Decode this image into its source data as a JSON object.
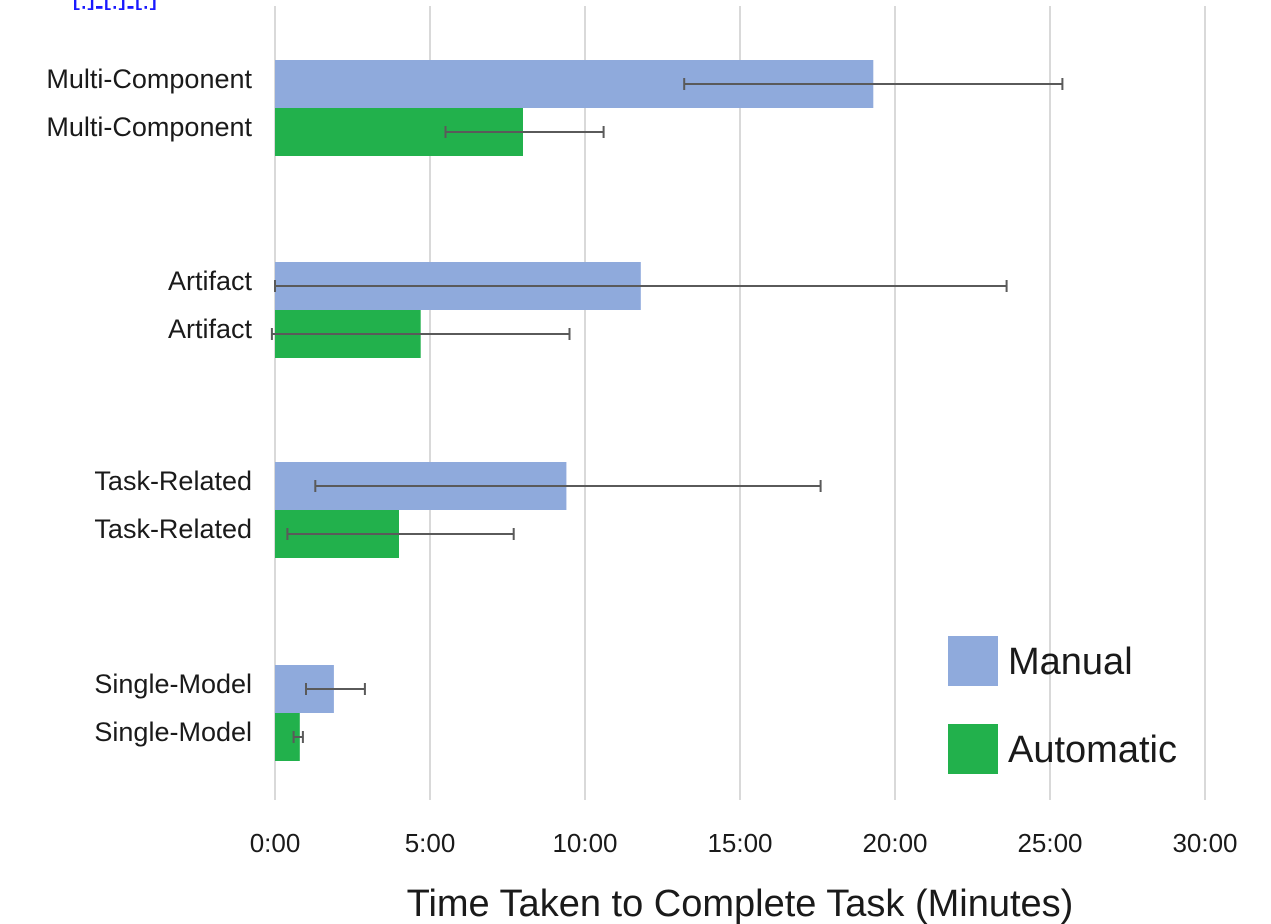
{
  "chart_data": {
    "type": "bar",
    "orientation": "horizontal",
    "title": "",
    "xlabel": "Time Taken to Complete Task (Minutes)",
    "ylabel": "",
    "xlim": [
      0,
      30
    ],
    "x_ticks": [
      0,
      5,
      10,
      15,
      20,
      25,
      30
    ],
    "x_tick_labels": [
      "0:00",
      "5:00",
      "10:00",
      "15:00",
      "20:00",
      "25:00",
      "30:00"
    ],
    "grid": "vertical",
    "legend_position": "bottom-right",
    "top_link_fragment": "[ ] [ ] [ ]",
    "series_colors": {
      "Manual": "#8faadc",
      "Automatic": "#22b14c"
    },
    "error_bar_color": "#5a5a5a",
    "groups": [
      {
        "bars": [
          {
            "label": "Multi-Component",
            "series": "Manual",
            "value": 19.3,
            "err_low": 13.2,
            "err_high": 25.4
          },
          {
            "label": "Multi-Component",
            "series": "Automatic",
            "value": 8.0,
            "err_low": 5.5,
            "err_high": 10.6
          }
        ]
      },
      {
        "bars": [
          {
            "label": "Artifact",
            "series": "Manual",
            "value": 11.8,
            "err_low": 0.0,
            "err_high": 23.6
          },
          {
            "label": "Artifact",
            "series": "Automatic",
            "value": 4.7,
            "err_low": -0.1,
            "err_high": 9.5
          }
        ]
      },
      {
        "bars": [
          {
            "label": "Task-Related",
            "series": "Manual",
            "value": 9.4,
            "err_low": 1.3,
            "err_high": 17.6
          },
          {
            "label": "Task-Related",
            "series": "Automatic",
            "value": 4.0,
            "err_low": 0.4,
            "err_high": 7.7
          }
        ]
      },
      {
        "bars": [
          {
            "label": "Single-Model",
            "series": "Manual",
            "value": 1.9,
            "err_low": 1.0,
            "err_high": 2.9
          },
          {
            "label": "Single-Model",
            "series": "Automatic",
            "value": 0.8,
            "err_low": 0.6,
            "err_high": 0.9
          }
        ]
      }
    ],
    "legend": [
      "Manual",
      "Automatic"
    ]
  }
}
